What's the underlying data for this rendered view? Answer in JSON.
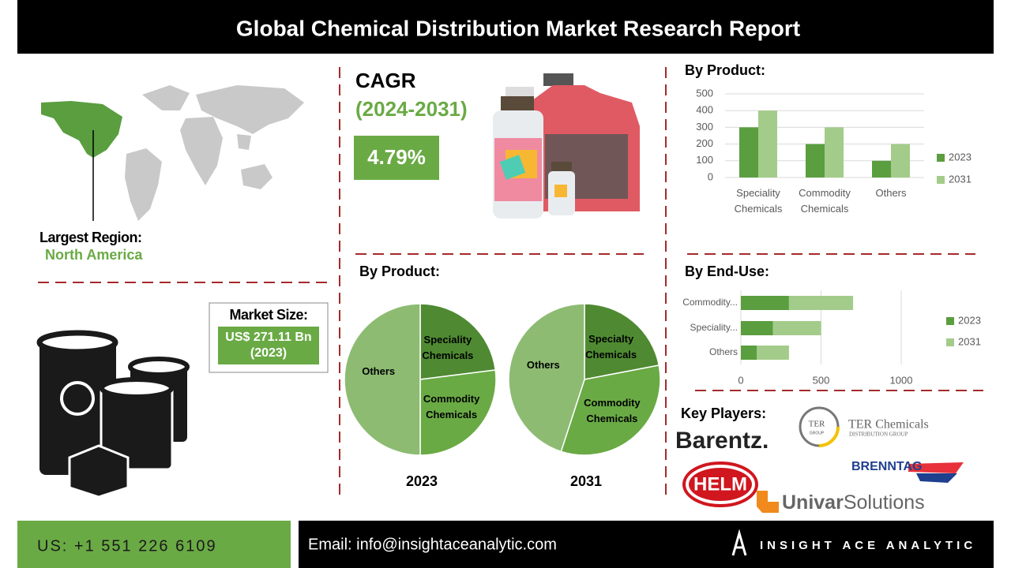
{
  "header": {
    "title": "Global Chemical Distribution Market Research Report"
  },
  "region": {
    "label": "Largest Region:",
    "value": "North America"
  },
  "cagr": {
    "label": "CAGR",
    "period": "(2024-2031)",
    "value": "4.79%"
  },
  "market_size": {
    "label": "Market Size:",
    "value": "US$ 271.11 Bn (2023)"
  },
  "chart_data": [
    {
      "type": "bar",
      "title": "By Product:",
      "categories": [
        "Speciality Chemicals",
        "Commodity Chemicals",
        "Others"
      ],
      "series": [
        {
          "name": "2023",
          "color": "#5a9e3f",
          "values": [
            300,
            200,
            100
          ]
        },
        {
          "name": "2031",
          "color": "#a3cc8a",
          "values": [
            400,
            300,
            200
          ]
        }
      ],
      "ylim": [
        0,
        500
      ],
      "yticks": [
        0,
        100,
        200,
        300,
        400,
        500
      ],
      "grid": true,
      "legend": "right"
    },
    {
      "type": "pie",
      "title": "By Product:",
      "subtitle": "2023",
      "categories": [
        "Speciality Chemicals",
        "Commodity Chemicals",
        "Others"
      ],
      "values": [
        23,
        27,
        50
      ],
      "colors": [
        "#4f8a32",
        "#6aaa45",
        "#8dbb72"
      ]
    },
    {
      "type": "pie",
      "subtitle": "2031",
      "categories": [
        "Specialty Chemicals",
        "Commodity Chemicals",
        "Others"
      ],
      "values": [
        22,
        33,
        45
      ],
      "colors": [
        "#4f8a32",
        "#6aaa45",
        "#8dbb72"
      ]
    },
    {
      "type": "bar",
      "orientation": "horizontal",
      "stacked": true,
      "title": "By End-Use:",
      "categories": [
        "Commodity...",
        "Speciality...",
        "Others"
      ],
      "series": [
        {
          "name": "2023",
          "color": "#5a9e3f",
          "values": [
            300,
            200,
            100
          ]
        },
        {
          "name": "2031",
          "color": "#a3cc8a",
          "values": [
            400,
            300,
            200
          ]
        }
      ],
      "xlim": [
        0,
        1000
      ],
      "xticks": [
        0,
        500,
        1000
      ],
      "grid": true,
      "legend": "right"
    }
  ],
  "key_players": {
    "title": "Key Players:",
    "barentz": "Barentz.",
    "ter_badge": "TER",
    "ter_group": "GROUP",
    "ter_name": "TER Chemicals",
    "ter_sub": "DISTRIBUTION GROUP",
    "brenntag": "BRENNTAG",
    "helm": "HELM",
    "univar": "Univar",
    "univar_sub": "Solutions"
  },
  "footer": {
    "phone": "US: +1 551 226 6109",
    "email": "Email: info@insightaceanalytic.com",
    "brand": "INSIGHT ACE ANALYTIC"
  }
}
